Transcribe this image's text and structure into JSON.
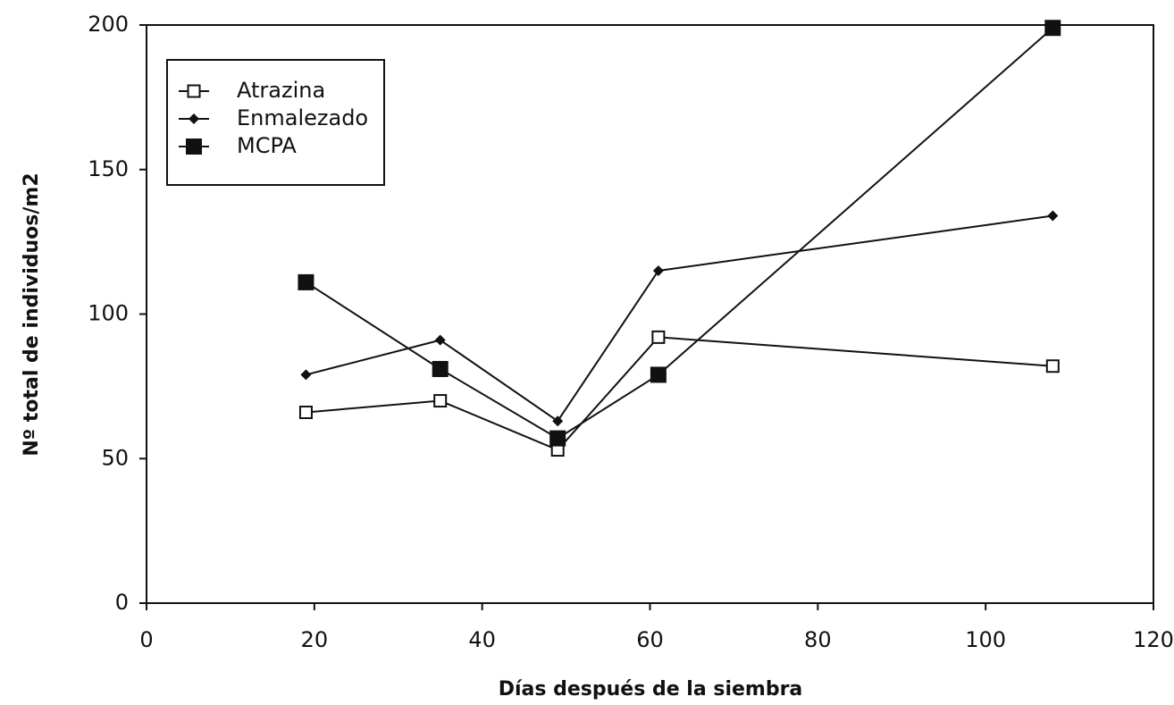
{
  "chart_data": {
    "type": "line",
    "x_label": "Días después de la siembra",
    "y_label": "Nº total de individuos/m2",
    "x": [
      19,
      35,
      49,
      61,
      108
    ],
    "series": [
      {
        "name": "Atrazina",
        "color": "#111111",
        "marker": "open-square",
        "values": [
          66,
          70,
          53,
          92,
          82
        ]
      },
      {
        "name": "Enmalezado",
        "color": "#111111",
        "marker": "diamond",
        "values": [
          79,
          91,
          63,
          115,
          134
        ]
      },
      {
        "name": "MCPA",
        "color": "#111111",
        "marker": "filled-square",
        "values": [
          111,
          81,
          57,
          79,
          199
        ]
      }
    ],
    "xlim": [
      0,
      120
    ],
    "xticks": [
      0,
      20,
      40,
      60,
      80,
      100,
      120
    ],
    "ylim": [
      0,
      200
    ],
    "yticks": [
      0,
      50,
      100,
      150,
      200
    ],
    "legend": "upper-left",
    "grid": false
  }
}
